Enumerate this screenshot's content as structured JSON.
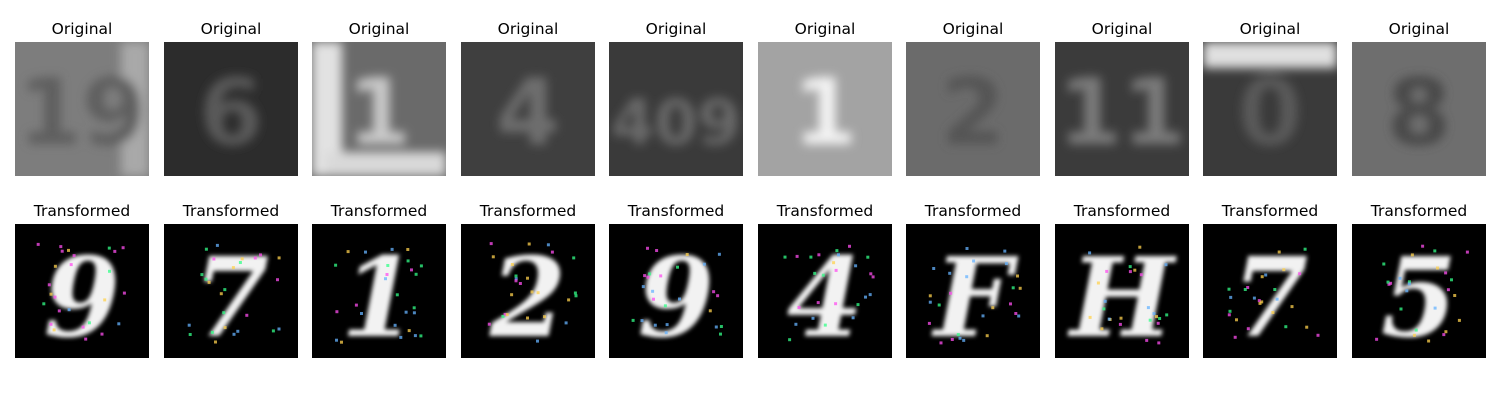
{
  "rows": [
    {
      "label": "Original",
      "kind": "original",
      "items": [
        {
          "title": "Original",
          "bg": "#7d7d7d",
          "glyph": "19",
          "glyph_color": "#5f5f5f",
          "side_band": "right-light"
        },
        {
          "title": "Original",
          "bg": "#2c2c2c",
          "glyph": "6",
          "glyph_color": "#5a5a5a",
          "side_band": "none"
        },
        {
          "title": "Original",
          "bg": "#6a6a6a",
          "glyph": "1",
          "glyph_color": "#c9c9c9",
          "side_band": "left-white"
        },
        {
          "title": "Original",
          "bg": "#3f3f3f",
          "glyph": "4",
          "glyph_color": "#6e6e6e",
          "side_band": "none"
        },
        {
          "title": "Original",
          "bg": "#3a3a3a",
          "glyph": "409",
          "glyph_color": "#6a6a6a",
          "side_band": "none"
        },
        {
          "title": "Original",
          "bg": "#a3a3a3",
          "glyph": "1",
          "glyph_color": "#f3f3f3",
          "side_band": "none"
        },
        {
          "title": "Original",
          "bg": "#6b6b6b",
          "glyph": "2",
          "glyph_color": "#555555",
          "side_band": "none"
        },
        {
          "title": "Original",
          "bg": "#3b3b3b",
          "glyph": "11",
          "glyph_color": "#7a7a7a",
          "side_band": "none"
        },
        {
          "title": "Original",
          "bg": "#3a3a3a",
          "glyph": "0",
          "glyph_color": "#5a5a5a",
          "side_band": "top-white"
        },
        {
          "title": "Original",
          "bg": "#6e6e6e",
          "glyph": "8",
          "glyph_color": "#4a4a4a",
          "side_band": "none"
        }
      ]
    },
    {
      "label": "Transformed",
      "kind": "transformed",
      "items": [
        {
          "title": "Transformed",
          "glyph": "9"
        },
        {
          "title": "Transformed",
          "glyph": "7"
        },
        {
          "title": "Transformed",
          "glyph": "1"
        },
        {
          "title": "Transformed",
          "glyph": "2"
        },
        {
          "title": "Transformed",
          "glyph": "9"
        },
        {
          "title": "Transformed",
          "glyph": "4"
        },
        {
          "title": "Transformed",
          "glyph": "F"
        },
        {
          "title": "Transformed",
          "glyph": "H"
        },
        {
          "title": "Transformed",
          "glyph": "7"
        },
        {
          "title": "Transformed",
          "glyph": "5"
        }
      ]
    }
  ],
  "colors": {
    "page_bg": "#ffffff",
    "title_color": "#000000",
    "transformed_bg": "#000000",
    "transformed_stroke": "#f2f2f2",
    "noise_colors": [
      "#ff4df0",
      "#33ff88",
      "#66b3ff",
      "#ffd24d"
    ]
  }
}
